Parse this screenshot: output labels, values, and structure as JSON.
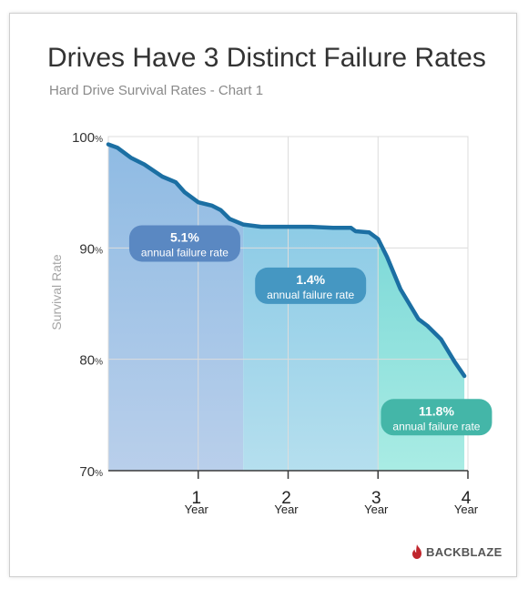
{
  "header": {
    "title": "Drives Have 3 Distinct Failure Rates",
    "subtitle": "Hard Drive Survival Rates - Chart 1"
  },
  "brand": {
    "name": "BACKBLAZE",
    "icon": "flame-icon",
    "color": "#c0262d"
  },
  "chart_data": {
    "type": "area",
    "ylabel": "Survival Rate",
    "ylim": [
      70,
      100
    ],
    "xlim": [
      0,
      4
    ],
    "y_ticks": [
      {
        "value": 100,
        "num": "100",
        "unit": "%"
      },
      {
        "value": 90,
        "num": "90",
        "unit": "%"
      },
      {
        "value": 80,
        "num": "80",
        "unit": "%"
      },
      {
        "value": 70,
        "num": "70",
        "unit": "%"
      }
    ],
    "x_ticks": [
      {
        "value": 1,
        "num": "1",
        "unit": "Year"
      },
      {
        "value": 2,
        "num": "2",
        "unit": "Year"
      },
      {
        "value": 3,
        "num": "3",
        "unit": "Year"
      },
      {
        "value": 4,
        "num": "4",
        "unit": "Year"
      }
    ],
    "grid": true,
    "series": [
      {
        "points": [
          [
            0,
            99.3
          ],
          [
            0.1,
            99.0
          ],
          [
            0.25,
            98.1
          ],
          [
            0.4,
            97.5
          ],
          [
            0.6,
            96.4
          ],
          [
            0.75,
            95.9
          ],
          [
            0.85,
            95.0
          ],
          [
            1.0,
            94.1
          ],
          [
            1.15,
            93.8
          ],
          [
            1.25,
            93.4
          ],
          [
            1.35,
            92.6
          ],
          [
            1.5,
            92.1
          ],
          [
            1.7,
            91.9
          ],
          [
            2.0,
            91.9
          ],
          [
            2.25,
            91.9
          ],
          [
            2.5,
            91.8
          ],
          [
            2.7,
            91.8
          ],
          [
            2.75,
            91.5
          ],
          [
            2.9,
            91.4
          ],
          [
            3.0,
            90.8
          ],
          [
            3.1,
            89.2
          ],
          [
            3.25,
            86.3
          ],
          [
            3.45,
            83.6
          ],
          [
            3.55,
            83.0
          ],
          [
            3.7,
            81.8
          ],
          [
            3.85,
            79.8
          ],
          [
            3.96,
            78.5
          ]
        ]
      }
    ],
    "colors": {
      "line": "#1b6fa3",
      "grid": "#dcdcdc"
    },
    "regions": [
      {
        "x_start": 0,
        "x_end": 1.5,
        "rate": "5.1%",
        "label": "annual failure rate",
        "badge_x": 0.85,
        "badge_y": 90.4,
        "badge_color": "#5a88c2",
        "fill": [
          "#8fbbe3",
          "#b9cfeb"
        ]
      },
      {
        "x_start": 1.5,
        "x_end": 3.0,
        "rate": "1.4%",
        "label": "annual failure rate",
        "badge_x": 2.25,
        "badge_y": 86.6,
        "badge_color": "#4597c2",
        "fill": [
          "#8dcbe6",
          "#b5dfee"
        ]
      },
      {
        "x_start": 3.0,
        "x_end": 4.0,
        "rate": "11.8%",
        "label": "annual failure rate",
        "badge_x": 3.65,
        "badge_y": 74.8,
        "badge_color": "#44b6a8",
        "fill": [
          "#7ed9d8",
          "#a9ece4"
        ]
      }
    ]
  }
}
